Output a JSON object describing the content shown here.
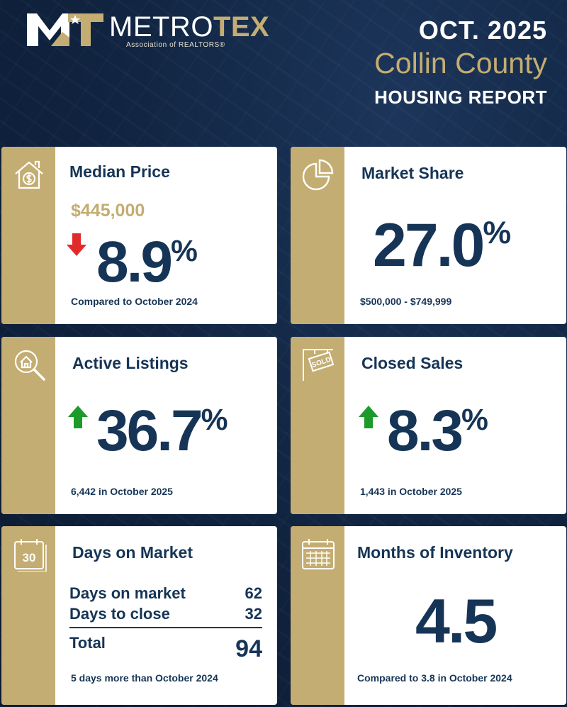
{
  "logo": {
    "word_white": "METRO",
    "word_gold": "TEX",
    "subtitle": "Association of REALTORS®"
  },
  "header": {
    "date": "OCT. 2025",
    "county": "Collin County",
    "report": "HOUSING REPORT"
  },
  "colors": {
    "navy": "#163556",
    "gold": "#c4ad72",
    "down": "#e02b2b",
    "up": "#1c9a2a"
  },
  "cards": {
    "median_price": {
      "icon": "house-dollar-icon",
      "title": "Median Price",
      "price": "$445,000",
      "direction": "down",
      "value": "8.9",
      "unit": "%",
      "note": "Compared to October 2024"
    },
    "market_share": {
      "icon": "pie-chart-icon",
      "title": "Market Share",
      "value": "27.0",
      "unit": "%",
      "note": "$500,000 - $749,999"
    },
    "active_listings": {
      "icon": "house-search-icon",
      "title": "Active Listings",
      "direction": "up",
      "value": "36.7",
      "unit": "%",
      "note": "6,442 in October 2025"
    },
    "closed_sales": {
      "icon": "sold-sign-icon",
      "title": "Closed Sales",
      "direction": "up",
      "value": "8.3",
      "unit": "%",
      "note": "1,443 in October 2025"
    },
    "days_on_market": {
      "icon": "calendar-30-icon",
      "icon_text": "30",
      "title": "Days on Market",
      "rows": [
        {
          "label": "Days on market",
          "value": "62"
        },
        {
          "label": "Days to close",
          "value": "32"
        }
      ],
      "total_label": "Total",
      "total_value": "94",
      "note": "5 days more than October 2024"
    },
    "months_inventory": {
      "icon": "calendar-grid-icon",
      "title": "Months of Inventory",
      "value": "4.5",
      "note": "Compared to 3.8 in October 2024"
    }
  }
}
